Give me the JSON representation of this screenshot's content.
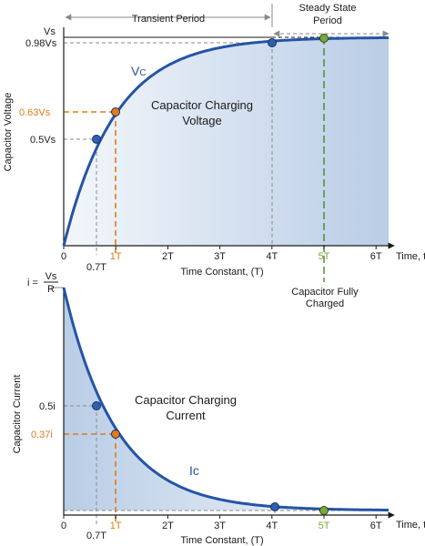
{
  "colors": {
    "curve": "#2454a6",
    "fill_light": "#f4f7fb",
    "fill_dark": "#b9cde6",
    "orange": "#e07b1a",
    "green": "#3f8a2c",
    "point_green": "#7aa83a",
    "point_blue": "#2f5fb0",
    "guide": "#8a8a8a",
    "text": "#1a1a1a"
  },
  "top": {
    "y_axis_label": "Capacitor Voltage",
    "y_ticks": {
      "vs": "Vs",
      "v098": "0.98Vs",
      "v063": "0.63Vs",
      "v05": "0.5Vs"
    },
    "transient_label": "Transient Period",
    "steady_label_1": "Steady State",
    "steady_label_2": "Period",
    "curve_label": "Vc",
    "curve_label_main": "V",
    "curve_label_sub": "C",
    "title_1": "Capacitor Charging",
    "title_2": "Voltage",
    "x_ticks": [
      "0",
      "1T",
      "2T",
      "3T",
      "4T",
      "5T",
      "6T"
    ],
    "x_axis_end": "Time, t",
    "x_extra_tick": "0.7T",
    "x_axis_label": "Time Constant, (T)",
    "note_1": "Capacitor Fully",
    "note_2": "Charged"
  },
  "bottom": {
    "y_top_label_i": "i =",
    "y_top_label_num": "Vs",
    "y_top_label_den": "R",
    "y_axis_label": "Capacitor Current",
    "y_ticks": {
      "i05": "0.5i",
      "i037": "0.37i"
    },
    "curve_label": "Ic",
    "title_1": "Capacitor Charging",
    "title_2": "Current",
    "x_ticks": [
      "0",
      "1T",
      "2T",
      "3T",
      "4T",
      "5T",
      "6T"
    ],
    "x_axis_end": "Time, t",
    "x_extra_tick": "0.7T",
    "x_axis_label": "Time Constant, (T)"
  },
  "chart_data": [
    {
      "type": "line",
      "function": "1 - e^(-t/T)",
      "xlim": [
        0,
        6
      ],
      "ylim": [
        0,
        1
      ],
      "marked_points": [
        {
          "x": 0.7,
          "y": 0.5,
          "label": "0.5Vs"
        },
        {
          "x": 1,
          "y": 0.63,
          "label": "0.63Vs"
        },
        {
          "x": 4,
          "y": 0.98,
          "label": "0.98Vs"
        },
        {
          "x": 5,
          "y": 1.0,
          "label": "Vs"
        }
      ]
    },
    {
      "type": "line",
      "function": "e^(-t/T)",
      "xlim": [
        0,
        6
      ],
      "ylim": [
        0,
        1
      ],
      "marked_points": [
        {
          "x": 0.7,
          "y": 0.5,
          "label": "0.5i"
        },
        {
          "x": 1,
          "y": 0.37,
          "label": "0.37i"
        },
        {
          "x": 4,
          "y": 0.02
        },
        {
          "x": 5,
          "y": 0.0
        }
      ]
    }
  ]
}
